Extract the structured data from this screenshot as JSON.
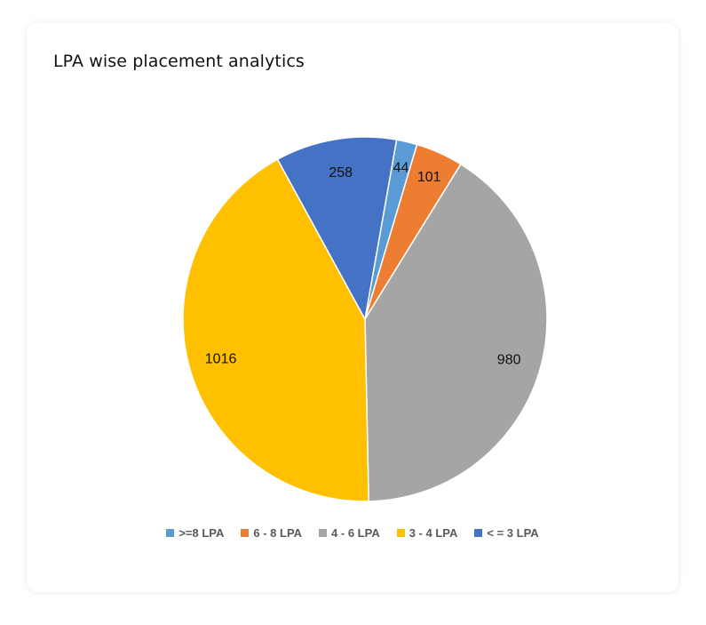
{
  "chart_data": {
    "type": "pie",
    "title": "LPA wise placement analytics",
    "slices": [
      {
        "label": ">=8 LPA",
        "value": 44,
        "color": "#5B9BD5"
      },
      {
        "label": "6 - 8 LPA",
        "value": 101,
        "color": "#ED7D31"
      },
      {
        "label": "4 - 6 LPA",
        "value": 980,
        "color": "#A5A5A5"
      },
      {
        "label": "3 - 4 LPA",
        "value": 1016,
        "color": "#FFC000"
      },
      {
        "label": "< = 3 LPA",
        "value": 258,
        "color": "#4472C4"
      }
    ],
    "legend_position": "bottom",
    "data_labels": true
  }
}
